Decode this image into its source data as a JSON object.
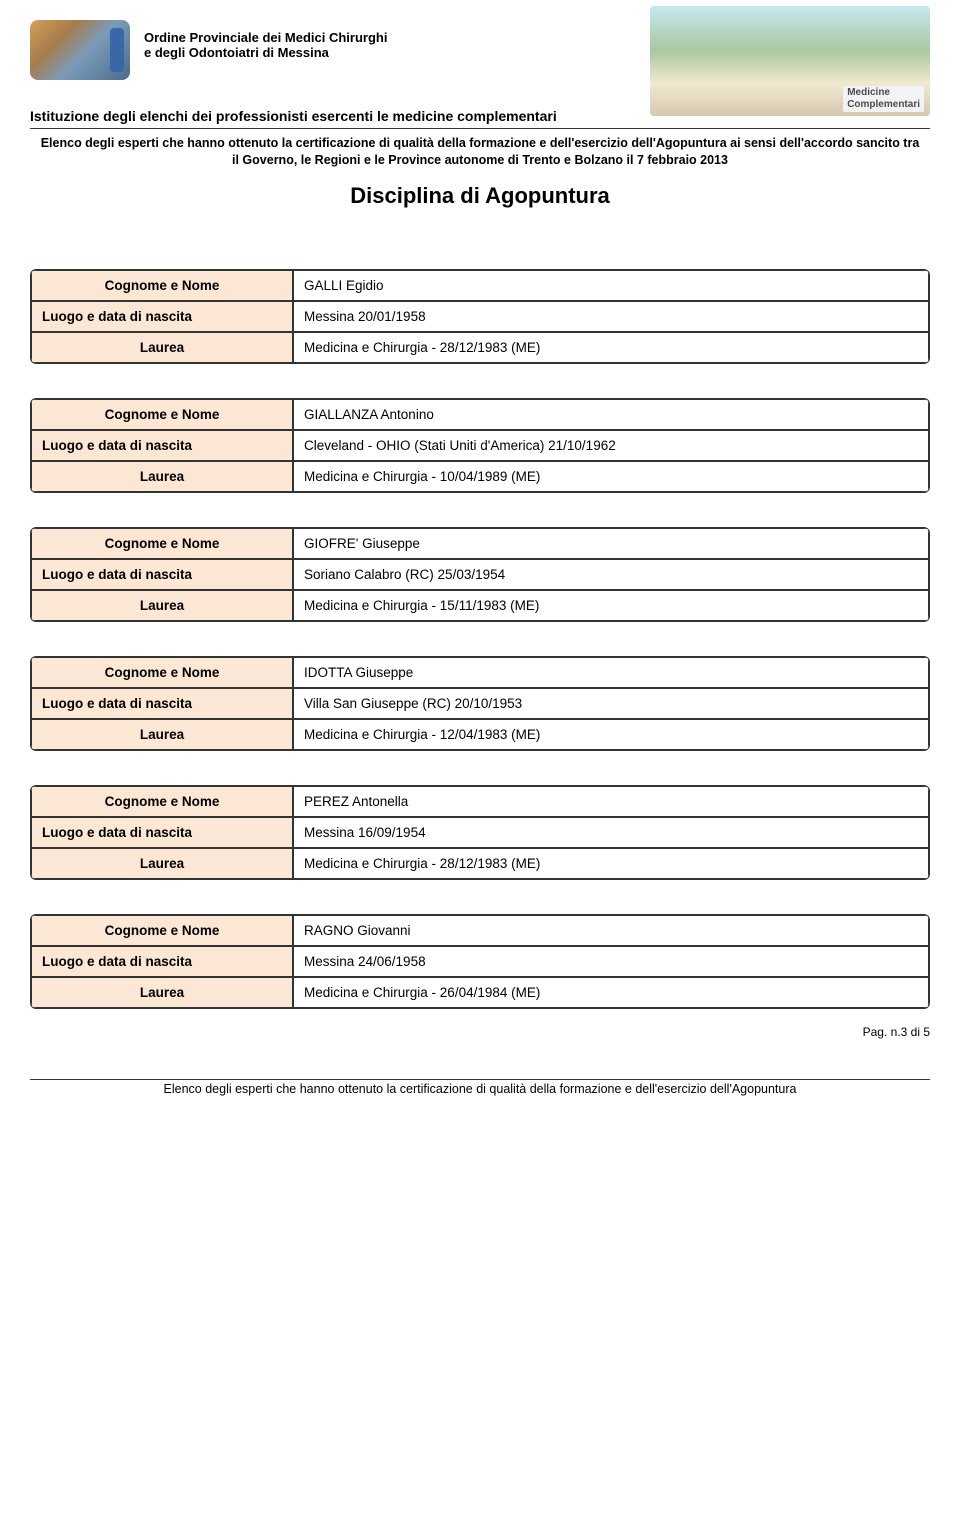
{
  "org": {
    "line1": "Ordine Provinciale dei Medici Chirurghi",
    "line2": "e degli Odontoiatri di Messina"
  },
  "right_badge": {
    "line1": "Medicine",
    "line2": "Complementari"
  },
  "subheader": "Istituzione degli elenchi dei professionisti esercenti le medicine complementari",
  "intro": "Elenco degli esperti che hanno ottenuto la certificazione di qualità della formazione e dell'esercizio dell'Agopuntura ai sensi dell'accordo sancito tra il Governo, le Regioni e le Province autonome di Trento e Bolzano il 7 febbraio 2013",
  "main_title": "Disciplina di Agopuntura",
  "labels": {
    "name": "Cognome e Nome",
    "birth": "Luogo e data di nascita",
    "degree": "Laurea"
  },
  "records": [
    {
      "name": "GALLI Egidio",
      "birth": "Messina 20/01/1958",
      "degree": "Medicina e Chirurgia - 28/12/1983 (ME)"
    },
    {
      "name": "GIALLANZA Antonino",
      "birth": "Cleveland - OHIO (Stati Uniti d'America) 21/10/1962",
      "degree": "Medicina e Chirurgia - 10/04/1989 (ME)"
    },
    {
      "name": "GIOFRE' Giuseppe",
      "birth": "Soriano Calabro (RC) 25/03/1954",
      "degree": "Medicina e Chirurgia - 15/11/1983 (ME)"
    },
    {
      "name": "IDOTTA Giuseppe",
      "birth": "Villa San Giuseppe (RC) 20/10/1953",
      "degree": "Medicina e Chirurgia - 12/04/1983 (ME)"
    },
    {
      "name": "PEREZ Antonella",
      "birth": "Messina 16/09/1954",
      "degree": "Medicina e Chirurgia - 28/12/1983 (ME)"
    },
    {
      "name": "RAGNO Giovanni",
      "birth": "Messina 24/06/1958",
      "degree": "Medicina e Chirurgia - 26/04/1984 (ME)"
    }
  ],
  "footer": {
    "page": "Pag. n.3 di 5",
    "text": "Elenco degli esperti che hanno ottenuto la certificazione di qualità della formazione e dell'esercizio dell'Agopuntura"
  },
  "colors": {
    "label_bg": "#fce6d4",
    "border": "#333333",
    "text": "#000000"
  }
}
